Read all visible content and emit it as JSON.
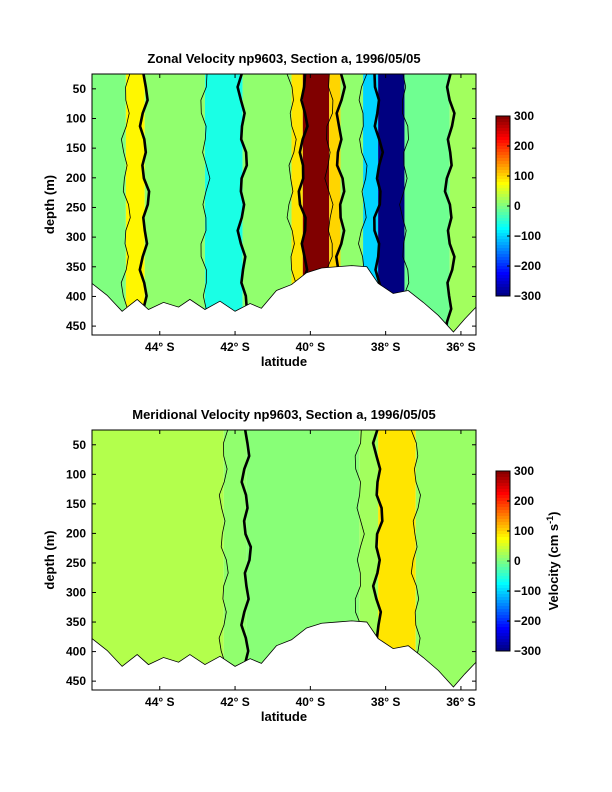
{
  "chart_data": [
    {
      "type": "heatmap",
      "title": "Zonal Velocity np9603, Section a, 1996/05/05",
      "xlabel": "latitude",
      "ylabel": "depth (m)",
      "x_ticks": [
        "44° S",
        "42° S",
        "40° S",
        "38° S",
        "36° S"
      ],
      "x_tick_values": [
        -44,
        -42,
        -40,
        -38,
        -36
      ],
      "xlim": [
        -45.8,
        -35.6
      ],
      "y_ticks": [
        "50",
        "100",
        "150",
        "200",
        "250",
        "300",
        "350",
        "400",
        "450"
      ],
      "y_tick_values": [
        50,
        100,
        150,
        200,
        250,
        300,
        350,
        400,
        450
      ],
      "ylim": [
        25,
        465
      ],
      "y_reversed": true,
      "colorbar": {
        "ticks": [
          "300",
          "200",
          "100",
          "0",
          "−100",
          "−200",
          "−300"
        ],
        "range": [
          -300,
          300
        ],
        "label": ""
      },
      "bottom_depth_profile": {
        "lat": [
          -45.8,
          -45.4,
          -45.0,
          -44.6,
          -44.3,
          -43.9,
          -43.5,
          -43.2,
          -42.8,
          -42.4,
          -42.0,
          -41.6,
          -41.3,
          -40.9,
          -40.5,
          -40.1,
          -39.7,
          -39.3,
          -38.9,
          -38.5,
          -38.2,
          -37.8,
          -37.4,
          -37.0,
          -36.6,
          -36.2,
          -35.9,
          -35.6
        ],
        "depth": [
          378,
          398,
          425,
          405,
          422,
          410,
          418,
          405,
          422,
          408,
          425,
          412,
          420,
          390,
          380,
          360,
          352,
          350,
          348,
          350,
          378,
          395,
          390,
          410,
          432,
          460,
          438,
          418
        ]
      },
      "bands": [
        {
          "lat": [
            -45.8,
            -44.9
          ],
          "velocity": 0
        },
        {
          "lat": [
            -44.9,
            -44.4
          ],
          "velocity": 80
        },
        {
          "lat": [
            -44.4,
            -42.8
          ],
          "velocity": 10
        },
        {
          "lat": [
            -42.8,
            -41.8
          ],
          "velocity": -60
        },
        {
          "lat": [
            -41.8,
            -40.5
          ],
          "velocity": 10
        },
        {
          "lat": [
            -40.5,
            -40.2
          ],
          "velocity": 90
        },
        {
          "lat": [
            -40.2,
            -39.5
          ],
          "velocity": 300
        },
        {
          "lat": [
            -39.5,
            -39.2
          ],
          "velocity": 100
        },
        {
          "lat": [
            -39.2,
            -38.6
          ],
          "velocity": 10
        },
        {
          "lat": [
            -38.6,
            -38.2
          ],
          "velocity": -100
        },
        {
          "lat": [
            -38.2,
            -37.5
          ],
          "velocity": -300
        },
        {
          "lat": [
            -37.5,
            -36.3
          ],
          "velocity": -10
        },
        {
          "lat": [
            -36.3,
            -35.6
          ],
          "velocity": 20
        }
      ]
    },
    {
      "type": "heatmap",
      "title": "Meridional Velocity np9603, Section a, 1996/05/05",
      "xlabel": "latitude",
      "ylabel": "depth (m)",
      "x_ticks": [
        "44° S",
        "42° S",
        "40° S",
        "38° S",
        "36° S"
      ],
      "x_tick_values": [
        -44,
        -42,
        -40,
        -38,
        -36
      ],
      "xlim": [
        -45.8,
        -35.6
      ],
      "y_ticks": [
        "50",
        "100",
        "150",
        "200",
        "250",
        "300",
        "350",
        "400",
        "450"
      ],
      "y_tick_values": [
        50,
        100,
        150,
        200,
        250,
        300,
        350,
        400,
        450
      ],
      "ylim": [
        25,
        465
      ],
      "y_reversed": true,
      "colorbar": {
        "ticks": [
          "300",
          "200",
          "100",
          "0",
          "−100",
          "−200",
          "−300"
        ],
        "range": [
          -300,
          300
        ],
        "label": "Velocity (cm s",
        "label_sup": "-1",
        "label_end": ")"
      },
      "bottom_depth_profile": {
        "lat": [
          -45.8,
          -45.4,
          -45.0,
          -44.6,
          -44.3,
          -43.9,
          -43.5,
          -43.2,
          -42.8,
          -42.4,
          -42.0,
          -41.6,
          -41.3,
          -40.9,
          -40.5,
          -40.1,
          -39.7,
          -39.3,
          -38.9,
          -38.5,
          -38.2,
          -37.8,
          -37.4,
          -37.0,
          -36.6,
          -36.2,
          -35.9,
          -35.6
        ],
        "depth": [
          378,
          398,
          425,
          405,
          422,
          410,
          418,
          405,
          422,
          408,
          425,
          412,
          420,
          390,
          380,
          360,
          352,
          350,
          348,
          350,
          378,
          395,
          390,
          410,
          432,
          460,
          438,
          418
        ]
      },
      "bands": [
        {
          "lat": [
            -45.8,
            -42.3
          ],
          "velocity": 30
        },
        {
          "lat": [
            -42.3,
            -41.7
          ],
          "velocity": 10
        },
        {
          "lat": [
            -41.7,
            -38.7
          ],
          "velocity": 5
        },
        {
          "lat": [
            -38.7,
            -38.2
          ],
          "velocity": 20
        },
        {
          "lat": [
            -38.2,
            -37.2
          ],
          "velocity": 90
        },
        {
          "lat": [
            -37.2,
            -35.6
          ],
          "velocity": 15
        }
      ]
    }
  ]
}
